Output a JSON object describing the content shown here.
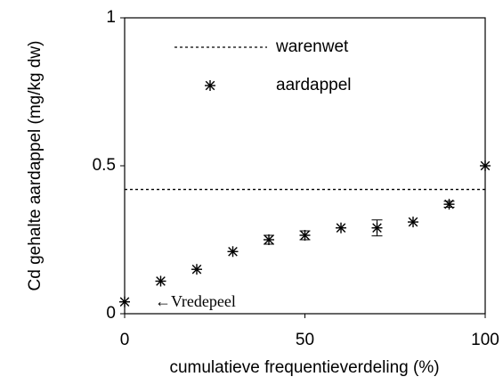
{
  "chart_data": {
    "type": "scatter",
    "x_label": "cumulatieve frequentieverdeling (%)",
    "y_label": "Cd gehalte aardappel (mg/kg dw)",
    "x": [
      0,
      10,
      20,
      30,
      40,
      50,
      60,
      70,
      80,
      90,
      100
    ],
    "series": [
      {
        "name": "aardappel",
        "color": "#000000",
        "values": [
          0.04,
          0.11,
          0.15,
          0.21,
          0.25,
          0.265,
          0.29,
          0.29,
          0.31,
          0.37,
          0.5
        ],
        "errors": [
          0,
          0,
          0,
          0,
          0.015,
          0.015,
          0,
          0.027,
          0,
          0.01,
          0
        ]
      }
    ],
    "reference_line": {
      "name": "warenwet",
      "value": 0.42,
      "color": "#000000"
    },
    "annotation": "←Vredepeel",
    "xlim": [
      0,
      100
    ],
    "xticks": [
      0,
      50,
      100
    ],
    "ylim": [
      0,
      1
    ],
    "yticks": [
      0,
      0.5,
      1
    ]
  }
}
